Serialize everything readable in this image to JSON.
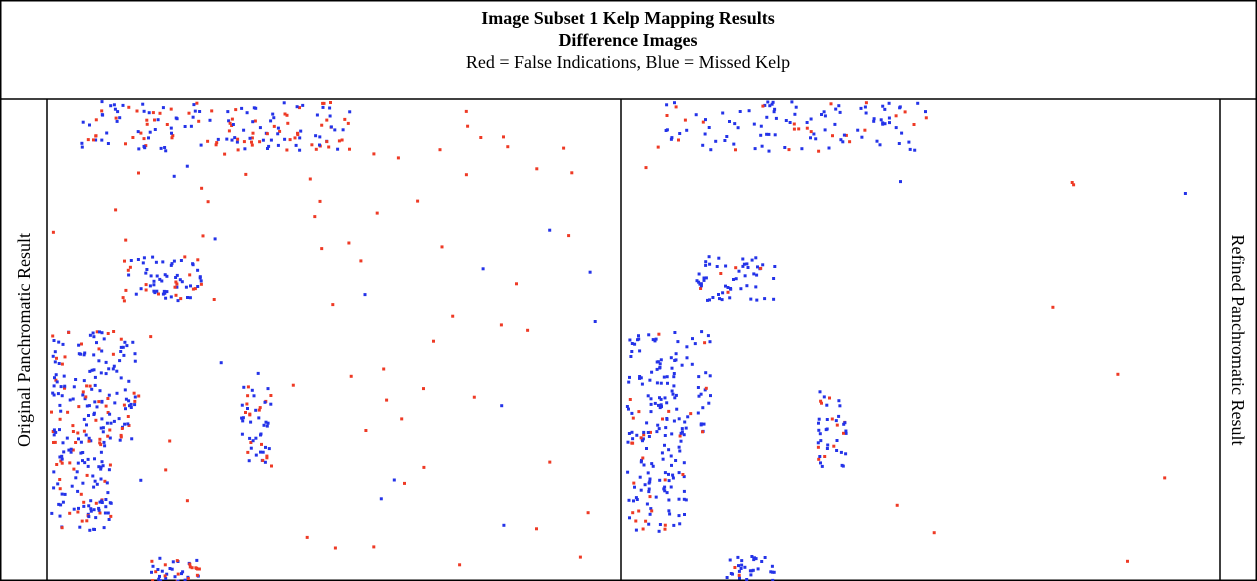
{
  "header": {
    "title": "Image Subset 1 Kelp Mapping Results",
    "subtitle": "Difference Images",
    "legend": "Red = False Indications, Blue = Missed Kelp"
  },
  "panels": [
    {
      "label": "Original Panchromatic Result"
    },
    {
      "label": "Refined Panchromatic Result"
    }
  ]
}
